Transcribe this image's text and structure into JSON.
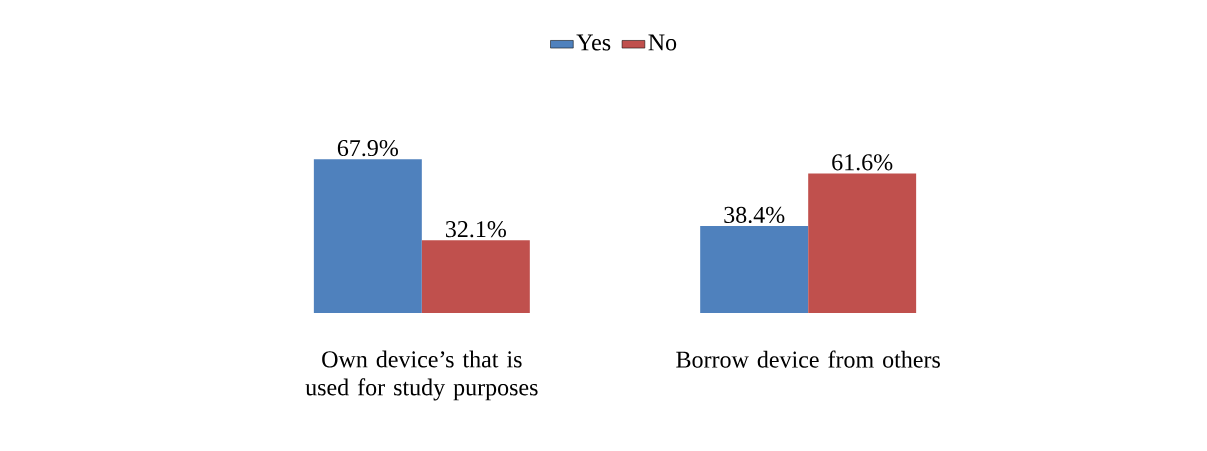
{
  "chart_data": {
    "type": "bar",
    "categories": [
      "Own device’s that is used for study purposes",
      "Borrow device from others"
    ],
    "series": [
      {
        "name": "Yes",
        "color": "#4f81bd",
        "values": [
          67.9,
          38.4
        ],
        "value_labels": [
          "67.9%",
          "38.4%"
        ]
      },
      {
        "name": "No",
        "color": "#c0504d",
        "values": [
          32.1,
          61.6
        ],
        "value_labels": [
          "32.1%",
          "61.6%"
        ]
      }
    ],
    "legend": "top"
  }
}
